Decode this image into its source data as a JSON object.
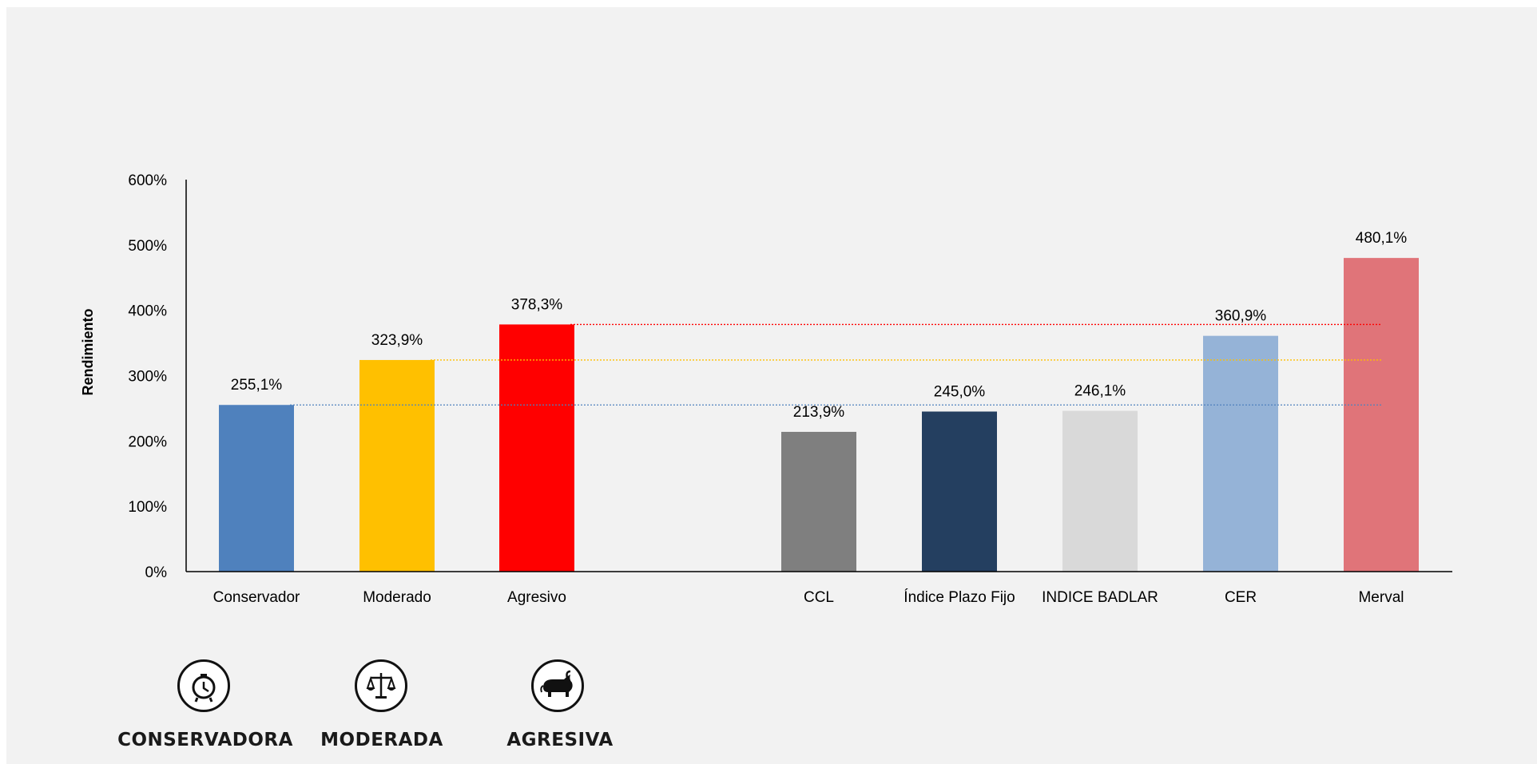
{
  "chart_data": {
    "type": "bar",
    "ylabel": "Rendimiento",
    "ylim": [
      0,
      600
    ],
    "yticks": [
      "0%",
      "100%",
      "200%",
      "300%",
      "400%",
      "500%",
      "600%"
    ],
    "grid": false,
    "categories": [
      "Conservador",
      "Moderado",
      "Agresivo",
      "CCL",
      "Índice Plazo Fijo",
      "INDICE BADLAR",
      "CER",
      "Merval"
    ],
    "values": [
      255.1,
      323.9,
      378.3,
      213.9,
      245.0,
      246.1,
      360.9,
      480.1
    ],
    "data_labels": [
      "255,1%",
      "323,9%",
      "378,3%",
      "213,9%",
      "245,0%",
      "246,1%",
      "360,9%",
      "480,1%"
    ],
    "colors": [
      "#4f81bd",
      "#ffc000",
      "#ff0000",
      "#7f7f7f",
      "#243f60",
      "#d9d9d9",
      "#95b3d7",
      "#e07479"
    ],
    "reference_lines": [
      {
        "value": 255.1,
        "color": "#4f81bd"
      },
      {
        "value": 323.9,
        "color": "#ffc000"
      },
      {
        "value": 378.3,
        "color": "#ff0000"
      }
    ]
  },
  "profiles": [
    {
      "label": "CONSERVADORA",
      "icon": "piggy-clock-icon"
    },
    {
      "label": "MODERADA",
      "icon": "balance-scale-icon"
    },
    {
      "label": "AGRESIVA",
      "icon": "bull-icon"
    }
  ]
}
